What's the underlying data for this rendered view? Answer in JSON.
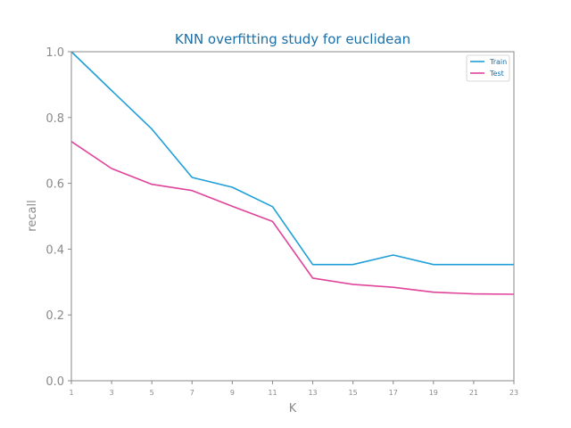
{
  "chart_data": {
    "type": "line",
    "title": "KNN overfitting study for euclidean",
    "xlabel": "K",
    "ylabel": "recall",
    "x": [
      1,
      3,
      5,
      7,
      9,
      11,
      13,
      15,
      17,
      19,
      21,
      23
    ],
    "x_tick_labels": [
      "1",
      "3",
      "5",
      "7",
      "9",
      "11",
      "13",
      "15",
      "17",
      "19",
      "21",
      "23"
    ],
    "y_tick_labels": [
      "0.0",
      "0.2",
      "0.4",
      "0.6",
      "0.8",
      "1.0"
    ],
    "y_ticks": [
      0.0,
      0.2,
      0.4,
      0.6,
      0.8,
      1.0
    ],
    "xlim": [
      1,
      23
    ],
    "ylim": [
      0.0,
      1.0
    ],
    "grid": false,
    "legend_position": "top-right",
    "series": [
      {
        "name": "Train",
        "color": "#1f9fd8",
        "values": [
          1.0,
          0.882,
          0.765,
          0.618,
          0.588,
          0.529,
          0.353,
          0.353,
          0.382,
          0.353,
          0.353,
          0.353
        ]
      },
      {
        "name": "Test",
        "color": "#e0449a",
        "values": [
          0.727,
          0.645,
          0.597,
          0.578,
          0.53,
          0.484,
          0.312,
          0.293,
          0.284,
          0.269,
          0.264,
          0.263
        ]
      }
    ]
  },
  "colors": {
    "title": "#1a6fa8",
    "axis_text": "#8a8a8a",
    "axis_line": "#8a8a8a",
    "legend_text": "#1a6fa8"
  }
}
